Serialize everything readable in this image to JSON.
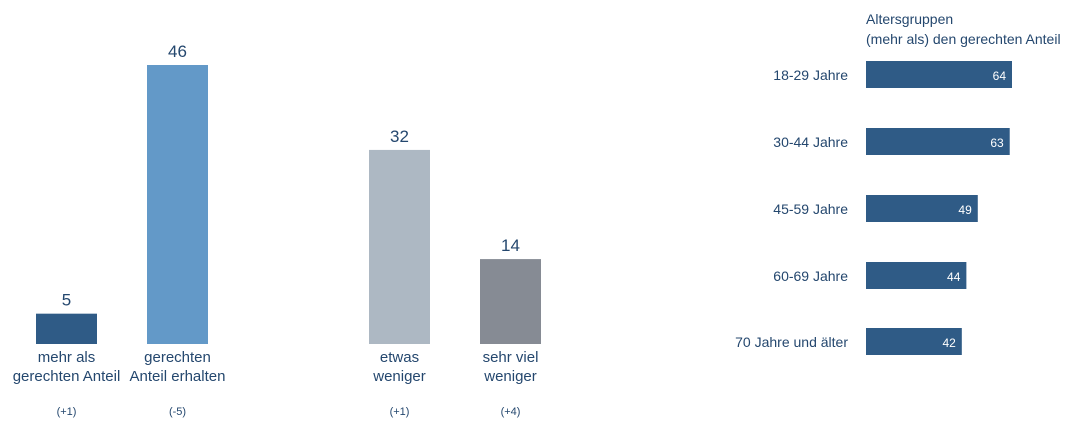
{
  "chart_data": [
    {
      "type": "bar",
      "orientation": "vertical",
      "categories": [
        "mehr als gerechten Anteil",
        "gerechten Anteil erhalten",
        "etwas weniger",
        "sehr viel weniger"
      ],
      "category_lines": [
        [
          "mehr als",
          "gerechten Anteil"
        ],
        [
          "gerechten",
          "Anteil erhalten"
        ],
        [
          "etwas",
          "weniger"
        ],
        [
          "sehr viel",
          "weniger"
        ]
      ],
      "values": [
        5,
        46,
        32,
        14
      ],
      "changes": [
        "(+1)",
        "(-5)",
        "(+1)",
        "(+4)"
      ],
      "colors": [
        "#2f5b86",
        "#6399c8",
        "#adb8c3",
        "#868b94"
      ],
      "ylim": [
        0,
        46
      ],
      "grid": false,
      "legend": "none"
    },
    {
      "type": "bar",
      "orientation": "horizontal",
      "header_lines": [
        "Altersgruppen",
        "(mehr als) den gerechten Anteil"
      ],
      "categories": [
        "18-29 Jahre",
        "30-44 Jahre",
        "45-59 Jahre",
        "60-69 Jahre",
        "70 Jahre und älter"
      ],
      "values": [
        64,
        63,
        49,
        44,
        42
      ],
      "color": "#2f5b86",
      "xlim": [
        0,
        64
      ],
      "grid": false,
      "legend": "none"
    }
  ]
}
